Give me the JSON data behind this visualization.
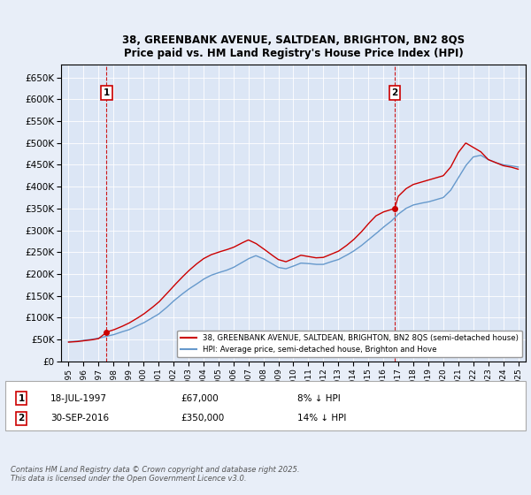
{
  "title_line1": "38, GREENBANK AVENUE, SALTDEAN, BRIGHTON, BN2 8QS",
  "title_line2": "Price paid vs. HM Land Registry's House Price Index (HPI)",
  "legend_line1": "38, GREENBANK AVENUE, SALTDEAN, BRIGHTON, BN2 8QS (semi-detached house)",
  "legend_line2": "HPI: Average price, semi-detached house, Brighton and Hove",
  "annotation1_label": "1",
  "annotation1_date": "18-JUL-1997",
  "annotation1_price": "£67,000",
  "annotation1_hpi": "8% ↓ HPI",
  "annotation2_label": "2",
  "annotation2_date": "30-SEP-2016",
  "annotation2_price": "£350,000",
  "annotation2_hpi": "14% ↓ HPI",
  "footnote": "Contains HM Land Registry data © Crown copyright and database right 2025.\nThis data is licensed under the Open Government Licence v3.0.",
  "background_color": "#e8eef8",
  "plot_bg_color": "#dce6f5",
  "red_color": "#cc0000",
  "blue_color": "#6699cc",
  "sale1_year": 1997.54,
  "sale1_price": 67000,
  "sale2_year": 2016.75,
  "sale2_price": 350000,
  "ylim_min": 0,
  "ylim_max": 680000,
  "xlim_min": 1994.5,
  "xlim_max": 2025.5,
  "years_hpi": [
    1995,
    1995.5,
    1996,
    1996.5,
    1997,
    1997.5,
    1998,
    1998.5,
    1999,
    1999.5,
    2000,
    2000.5,
    2001,
    2001.5,
    2002,
    2002.5,
    2003,
    2003.5,
    2004,
    2004.5,
    2005,
    2005.5,
    2006,
    2006.5,
    2007,
    2007.5,
    2008,
    2008.5,
    2009,
    2009.5,
    2010,
    2010.5,
    2011,
    2011.5,
    2012,
    2012.5,
    2013,
    2013.5,
    2014,
    2014.5,
    2015,
    2015.5,
    2016,
    2016.5,
    2017,
    2017.5,
    2018,
    2018.5,
    2019,
    2019.5,
    2020,
    2020.5,
    2021,
    2021.5,
    2022,
    2022.5,
    2023,
    2023.5,
    2024,
    2024.5,
    2025
  ],
  "hpi_values": [
    45000,
    46000,
    48000,
    50000,
    53000,
    57000,
    61000,
    67000,
    72000,
    80000,
    88000,
    98000,
    108000,
    122000,
    138000,
    152000,
    165000,
    176000,
    188000,
    197000,
    203000,
    208000,
    215000,
    225000,
    235000,
    242000,
    235000,
    225000,
    215000,
    212000,
    218000,
    225000,
    224000,
    222000,
    222000,
    228000,
    233000,
    242000,
    252000,
    264000,
    278000,
    292000,
    307000,
    320000,
    337000,
    350000,
    358000,
    362000,
    365000,
    370000,
    375000,
    392000,
    420000,
    448000,
    468000,
    472000,
    462000,
    455000,
    450000,
    448000,
    445000
  ],
  "years_red": [
    1995,
    1995.5,
    1996,
    1996.5,
    1997,
    1997.54,
    1998,
    1998.5,
    1999,
    1999.5,
    2000,
    2000.5,
    2001,
    2001.5,
    2002,
    2002.5,
    2003,
    2003.5,
    2004,
    2004.5,
    2005,
    2005.5,
    2006,
    2006.5,
    2007,
    2007.5,
    2008,
    2008.5,
    2009,
    2009.5,
    2010,
    2010.5,
    2011,
    2011.5,
    2012,
    2012.5,
    2013,
    2013.5,
    2014,
    2014.5,
    2015,
    2015.5,
    2016,
    2016.75,
    2017,
    2017.5,
    2018,
    2018.5,
    2019,
    2019.5,
    2020,
    2020.5,
    2021,
    2021.5,
    2022,
    2022.5,
    2023,
    2023.5,
    2024,
    2024.5,
    2025
  ],
  "red_values": [
    44000,
    45000,
    47000,
    49000,
    52000,
    67000,
    72000,
    79000,
    87000,
    97000,
    108000,
    121000,
    135000,
    153000,
    172000,
    190000,
    207000,
    222000,
    235000,
    244000,
    250000,
    255000,
    261000,
    270000,
    278000,
    270000,
    258000,
    245000,
    233000,
    228000,
    235000,
    243000,
    240000,
    237000,
    238000,
    245000,
    252000,
    264000,
    278000,
    295000,
    315000,
    333000,
    342000,
    350000,
    378000,
    395000,
    405000,
    410000,
    415000,
    420000,
    425000,
    445000,
    478000,
    500000,
    490000,
    480000,
    462000,
    455000,
    448000,
    445000,
    440000
  ]
}
